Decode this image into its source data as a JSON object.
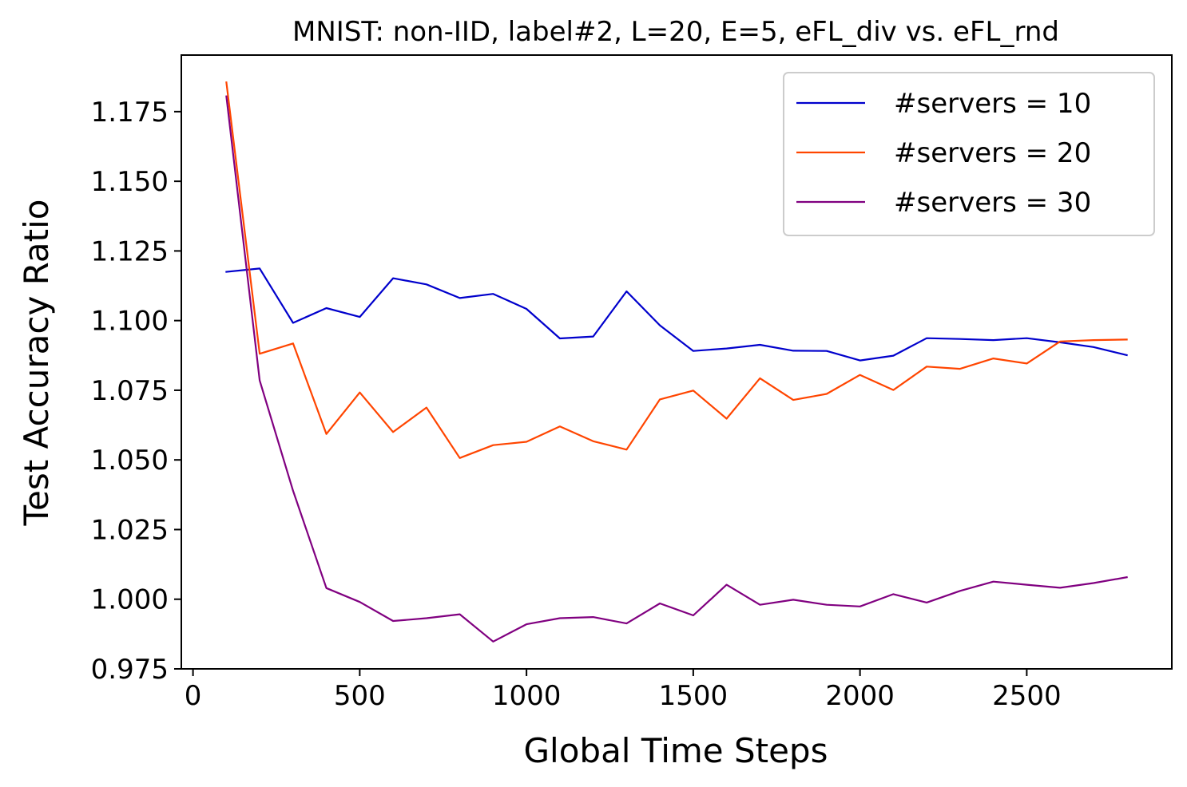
{
  "chart_data": {
    "type": "line",
    "title": "MNIST: non-IID, label#2, L=20, E=5, eFL_div vs. eFL_rnd",
    "xlabel": "Global Time Steps",
    "ylabel": "Test Accuracy Ratio",
    "xlim": [
      -35,
      2935
    ],
    "ylim": [
      0.975,
      1.1953
    ],
    "xticks": [
      0,
      500,
      1000,
      1500,
      2000,
      2500
    ],
    "xtick_labels": [
      "0",
      "500",
      "1000",
      "1500",
      "2000",
      "2500"
    ],
    "yticks": [
      0.975,
      1.0,
      1.025,
      1.05,
      1.075,
      1.1,
      1.125,
      1.15,
      1.175
    ],
    "ytick_labels": [
      "0.975",
      "1.000",
      "1.025",
      "1.050",
      "1.075",
      "1.100",
      "1.125",
      "1.150",
      "1.175"
    ],
    "grid": false,
    "legend_position": "top-right",
    "x": [
      100,
      200,
      300,
      400,
      500,
      600,
      700,
      800,
      900,
      1000,
      1100,
      1200,
      1300,
      1400,
      1500,
      1600,
      1700,
      1800,
      1900,
      2000,
      2100,
      2200,
      2300,
      2400,
      2500,
      2600,
      2700,
      2800
    ],
    "series": [
      {
        "name": "#servers = 10",
        "color": "#0000cc",
        "values": [
          1.1175,
          1.1187,
          1.0992,
          1.1045,
          1.1013,
          1.1152,
          1.113,
          1.1081,
          1.1096,
          1.1042,
          1.0936,
          1.0943,
          1.1105,
          1.0983,
          1.0891,
          1.09,
          1.0913,
          1.0892,
          1.0891,
          1.0857,
          1.0874,
          1.0937,
          1.0934,
          1.093,
          1.0937,
          1.0922,
          1.0905,
          1.0876
        ]
      },
      {
        "name": "#servers = 20",
        "color": "#ff4500",
        "values": [
          1.1855,
          1.0881,
          1.0918,
          1.0593,
          1.0742,
          1.06,
          1.0688,
          1.0507,
          1.0553,
          1.0565,
          1.062,
          1.0567,
          1.0537,
          1.0717,
          1.0749,
          1.0648,
          1.0793,
          1.0715,
          1.0737,
          1.0805,
          1.0751,
          1.0835,
          1.0827,
          1.0864,
          1.0846,
          1.0925,
          1.093,
          1.0932
        ]
      },
      {
        "name": "#servers = 30",
        "color": "#800080",
        "values": [
          1.1805,
          1.0785,
          1.0389,
          1.004,
          0.999,
          0.9922,
          0.9932,
          0.9946,
          0.9848,
          0.991,
          0.9932,
          0.9936,
          0.9913,
          0.9985,
          0.9942,
          1.0052,
          0.998,
          0.9998,
          0.998,
          0.9974,
          1.0018,
          0.9988,
          1.003,
          1.0063,
          1.0052,
          1.0041,
          1.0058,
          1.0079
        ]
      }
    ]
  }
}
